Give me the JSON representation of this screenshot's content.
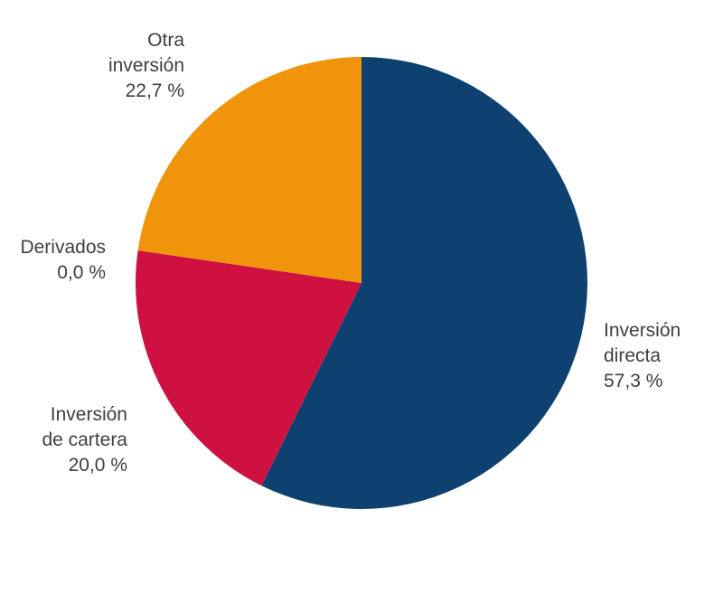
{
  "chart_data": {
    "type": "pie",
    "direction": "clockwise",
    "start_angle_deg": 0,
    "legend_position": "none",
    "labels_outside": true,
    "label_color": "#3F3F3E",
    "background_color": "#FFFFFF",
    "slices": [
      {
        "label": "Inversión directa",
        "label_lines": [
          "Inversión",
          "directa"
        ],
        "value_pct": 57.3,
        "display_value": "57,3 %",
        "color": "#0E4170"
      },
      {
        "label": "Inversión de cartera",
        "label_lines": [
          "Inversión",
          "de cartera"
        ],
        "value_pct": 20.0,
        "display_value": "20,0 %",
        "color": "#CE1140"
      },
      {
        "label": "Derivados",
        "label_lines": [
          "Derivados"
        ],
        "value_pct": 0.0,
        "display_value": "0,0 %",
        "color": null
      },
      {
        "label": "Otra inversión",
        "label_lines": [
          "Otra",
          "inversión"
        ],
        "value_pct": 22.7,
        "display_value": "22,7 %",
        "color": "#F0940B"
      }
    ]
  }
}
